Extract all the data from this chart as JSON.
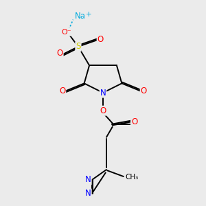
{
  "background_color": "#ebebeb",
  "bond_color": "#000000",
  "atom_colors": {
    "O": "#ff0000",
    "N": "#0000ff",
    "S": "#cccc00",
    "Na": "#00aadd",
    "C": "#000000"
  }
}
